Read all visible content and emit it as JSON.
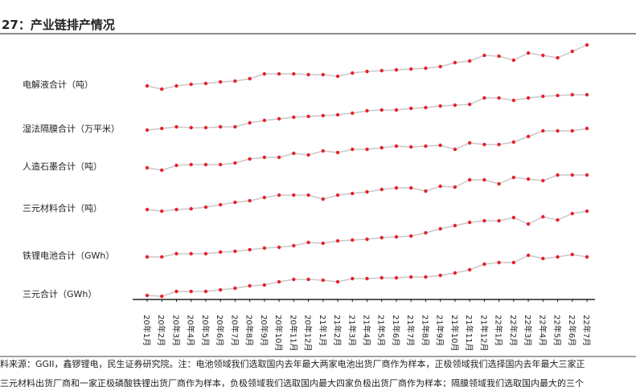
{
  "chart_data": {
    "type": "line",
    "title": "27：产业链排产情况",
    "categories": [
      "20年1月",
      "20年2月",
      "20年3月",
      "20年4月",
      "20年5月",
      "20年6月",
      "20年7月",
      "20年8月",
      "20年9月",
      "20年10月",
      "20年11月",
      "20年12月",
      "21年1月",
      "21年2月",
      "21年3月",
      "21年4月",
      "21年5月",
      "21年6月",
      "21年7月",
      "21年8月",
      "21年9月",
      "21年10月",
      "21年11月",
      "21年12月",
      "22年1月",
      "22年2月",
      "22年3月",
      "22年4月",
      "22年5月",
      "22年6月",
      "22年7月"
    ],
    "series": [
      {
        "name": "电解液合计（吨）",
        "color": "#e8202a",
        "values": [
          265,
          261,
          265,
          267,
          268,
          270,
          271,
          274,
          280,
          280,
          280,
          279,
          279,
          277,
          281,
          283,
          284,
          285,
          286,
          287,
          289,
          294,
          296,
          303,
          302,
          297,
          306,
          303,
          300,
          308,
          316
        ]
      },
      {
        "name": "湿法隔膜合计（万平米）",
        "color": "#e8202a",
        "values": [
          210,
          212,
          214,
          213,
          213,
          214,
          214,
          219,
          222,
          224,
          226,
          227,
          228,
          229,
          231,
          234,
          235,
          235,
          237,
          238,
          240,
          241,
          242,
          250,
          250,
          247,
          250,
          252,
          253,
          254,
          254
        ]
      },
      {
        "name": "人造石墨合计（吨）",
        "color": "#e8202a",
        "values": [
          163,
          160,
          166,
          167,
          167,
          167,
          169,
          174,
          176,
          176,
          181,
          179,
          184,
          182,
          186,
          186,
          188,
          190,
          189,
          190,
          191,
          186,
          194,
          192,
          192,
          195,
          202,
          209,
          209,
          209,
          212
        ]
      },
      {
        "name": "三元材料合计（吨）",
        "color": "#e8202a",
        "values": [
          111,
          109,
          111,
          112,
          114,
          117,
          120,
          122,
          126,
          129,
          129,
          129,
          124,
          129,
          131,
          133,
          136,
          138,
          138,
          134,
          140,
          139,
          148,
          148,
          143,
          151,
          149,
          147,
          154,
          154,
          154
        ]
      },
      {
        "name": "铁锂电池合计（GWh）",
        "color": "#e8202a",
        "values": [
          52,
          52,
          56,
          56,
          56,
          58,
          59,
          61,
          63,
          64,
          66,
          70,
          69,
          72,
          73,
          74,
          76,
          77,
          78,
          82,
          87,
          91,
          95,
          97,
          97,
          101,
          93,
          102,
          98,
          106,
          109
        ]
      },
      {
        "name": "三元合计（GWh）",
        "color": "#e8202a",
        "values": [
          4,
          3,
          9,
          9,
          9,
          11,
          13,
          16,
          17,
          21,
          24,
          24,
          23,
          21,
          25,
          25,
          26,
          26,
          27,
          27,
          29,
          32,
          36,
          43,
          45,
          45,
          54,
          50,
          52,
          55,
          52
        ]
      }
    ],
    "ylim": [
      0,
      330
    ],
    "source": [
      "料来源：GGII，鑫锣锂电，民生证券研究院。注：电池领域我们选取国内去年最大两家电池出货厂商作为样本，正极领域我们选择国内去年最大三家正",
      "三元材料出货厂商和一家正极磷酸铁锂出货厂商作为样本，负极领域我们选取国内最大四家负极出货厂商作为样本；隔膜领域我们选取国内最大的三个"
    ]
  }
}
